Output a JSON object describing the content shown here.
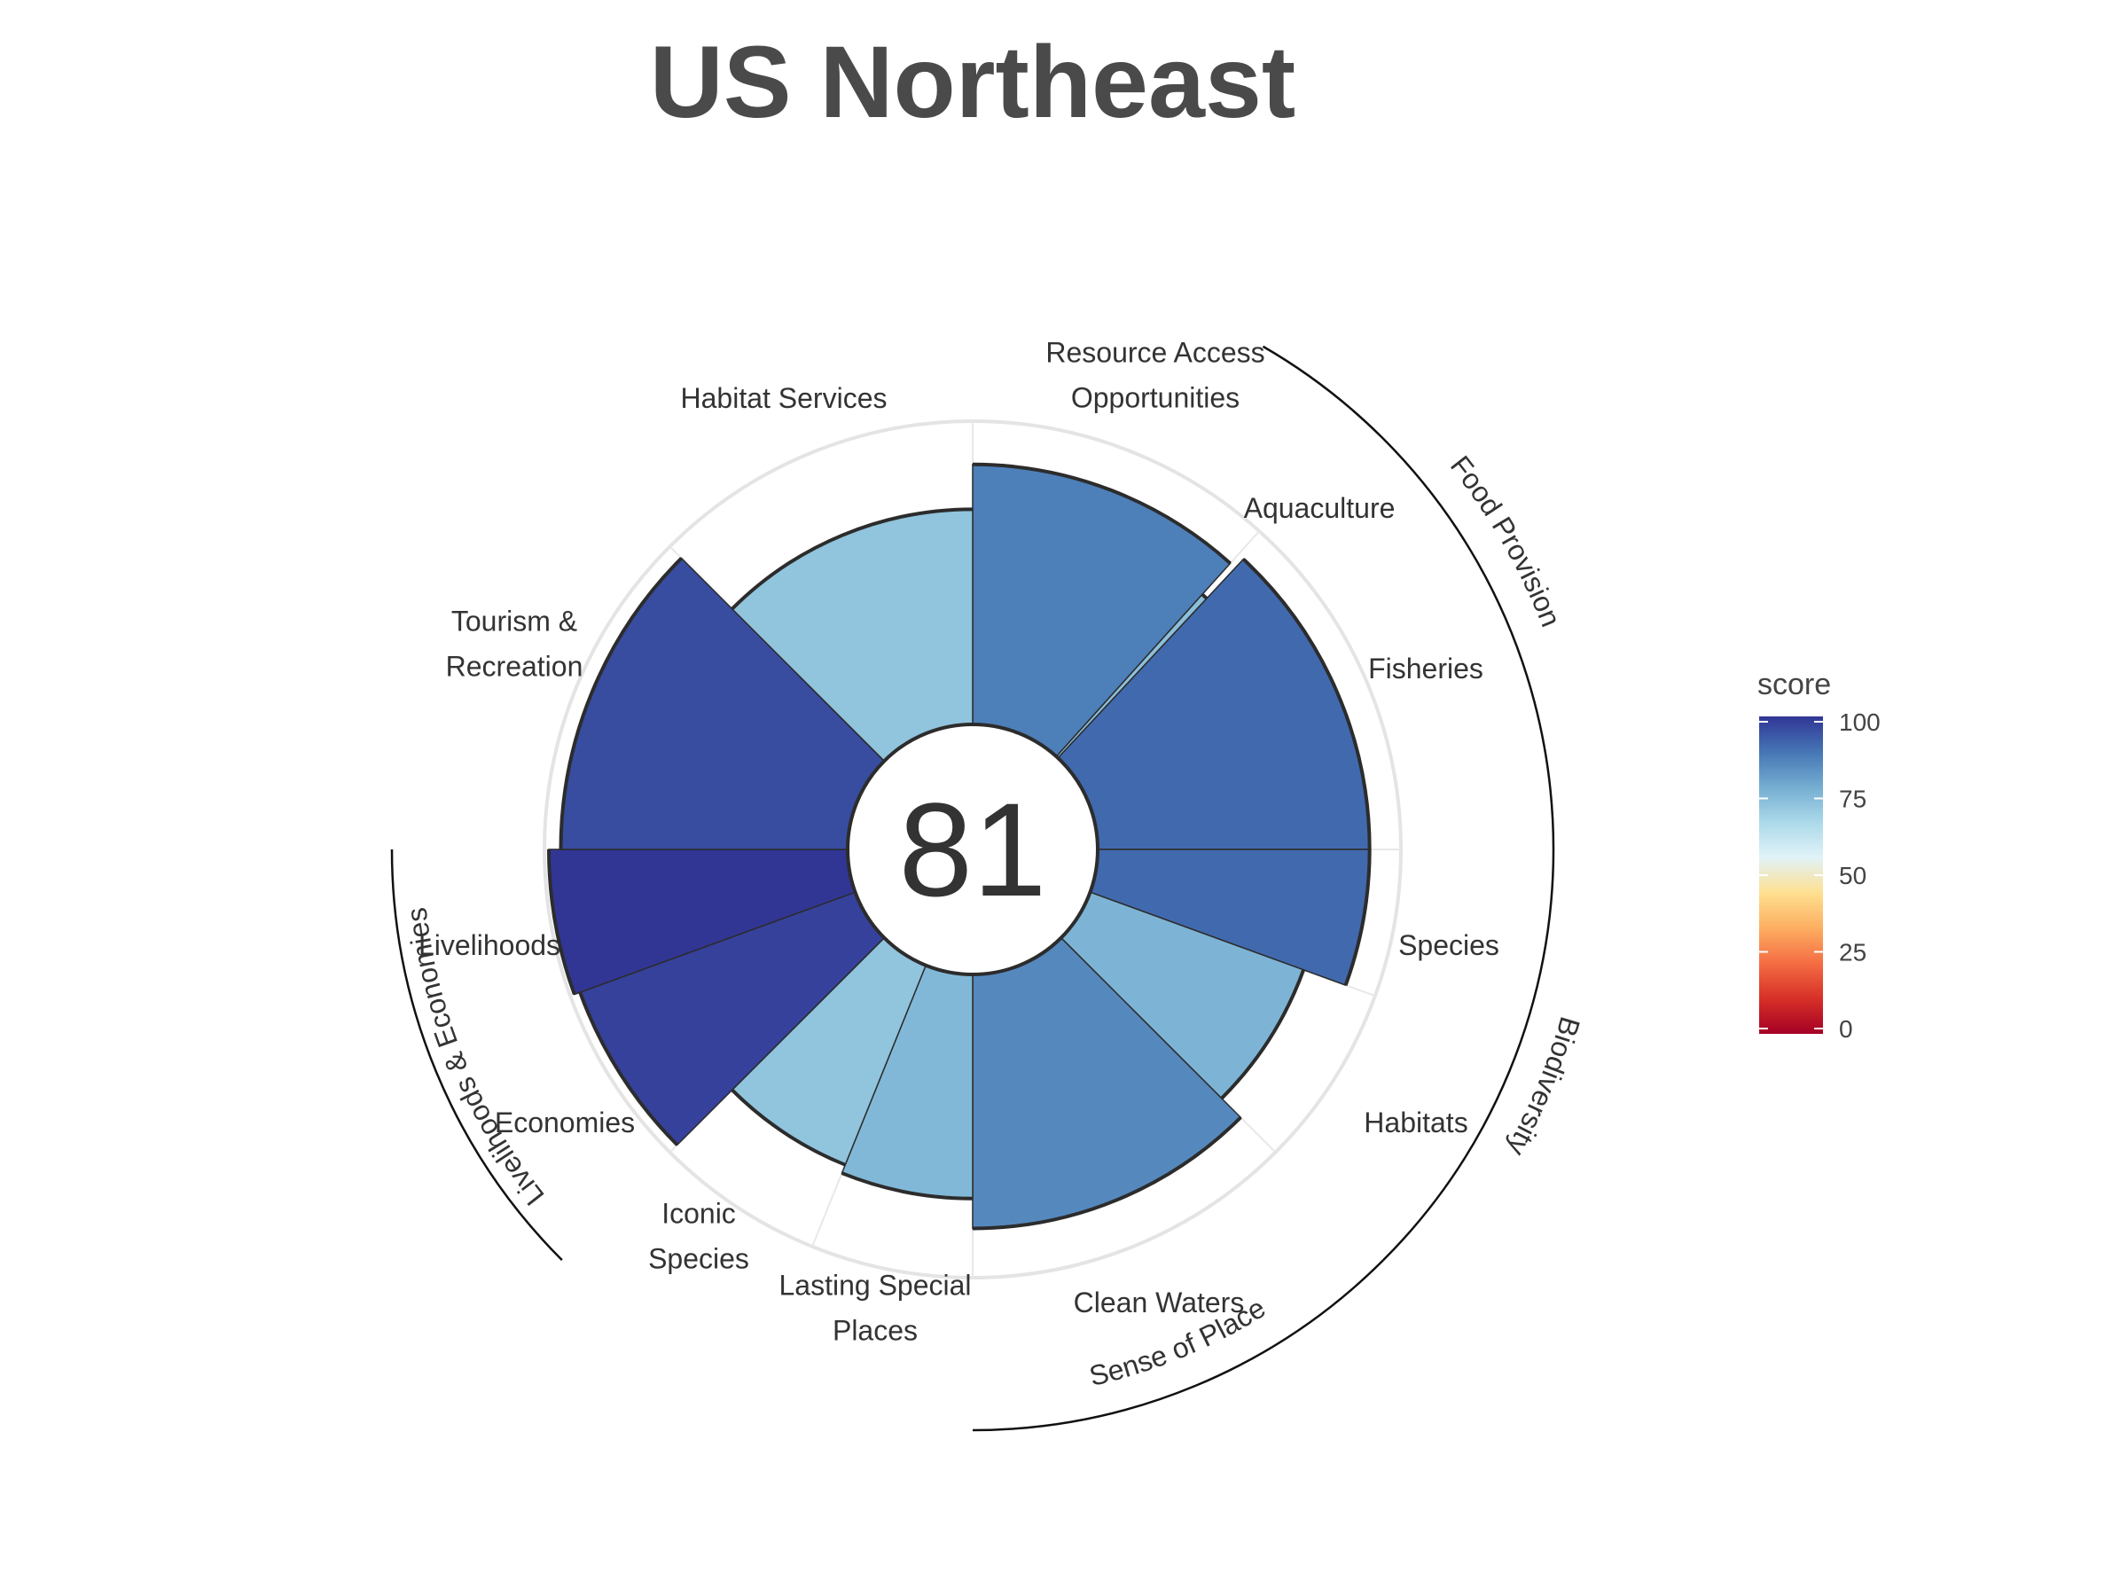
{
  "chart_data": {
    "type": "radial_bar",
    "title": "US Northeast",
    "overall_score": "81",
    "domain_max": 100,
    "sectors": [
      {
        "label": [
          "Resource Access",
          "Opportunities"
        ],
        "value": 87
      },
      {
        "label": [
          "Aquaculture"
        ],
        "value": 73
      },
      {
        "label": [
          "Fisheries"
        ],
        "value": 91
      },
      {
        "label": [
          "Species"
        ],
        "value": 91
      },
      {
        "label": [
          "Habitats"
        ],
        "value": 76
      },
      {
        "label": [
          "Clean Waters"
        ],
        "value": 85
      },
      {
        "label": [
          "Lasting Special",
          "Places"
        ],
        "value": 75
      },
      {
        "label": [
          "Iconic",
          "Species"
        ],
        "value": 72
      },
      {
        "label": [
          "Economies"
        ],
        "value": 98
      },
      {
        "label": [
          "Livelihoods"
        ],
        "value": 100
      },
      {
        "label": [
          "Tourism &",
          "Recreation"
        ],
        "value": 96
      },
      {
        "label": [
          "Habitat Services"
        ],
        "value": 72
      }
    ],
    "groups": [
      {
        "label": "Food Provision"
      },
      {
        "label": "Biodiversity"
      },
      {
        "label": "Sense of Place"
      },
      {
        "label": "Livelihoods & Economies"
      }
    ],
    "legend": {
      "title": "score",
      "position": "right",
      "ticks": [
        "100",
        "75",
        "50",
        "25",
        "0"
      ],
      "colors": [
        "#a50026",
        "#d73027",
        "#f46d43",
        "#fdae61",
        "#fee090",
        "#e0f3f8",
        "#abd9e9",
        "#74add1",
        "#4575b4",
        "#313695"
      ]
    }
  }
}
